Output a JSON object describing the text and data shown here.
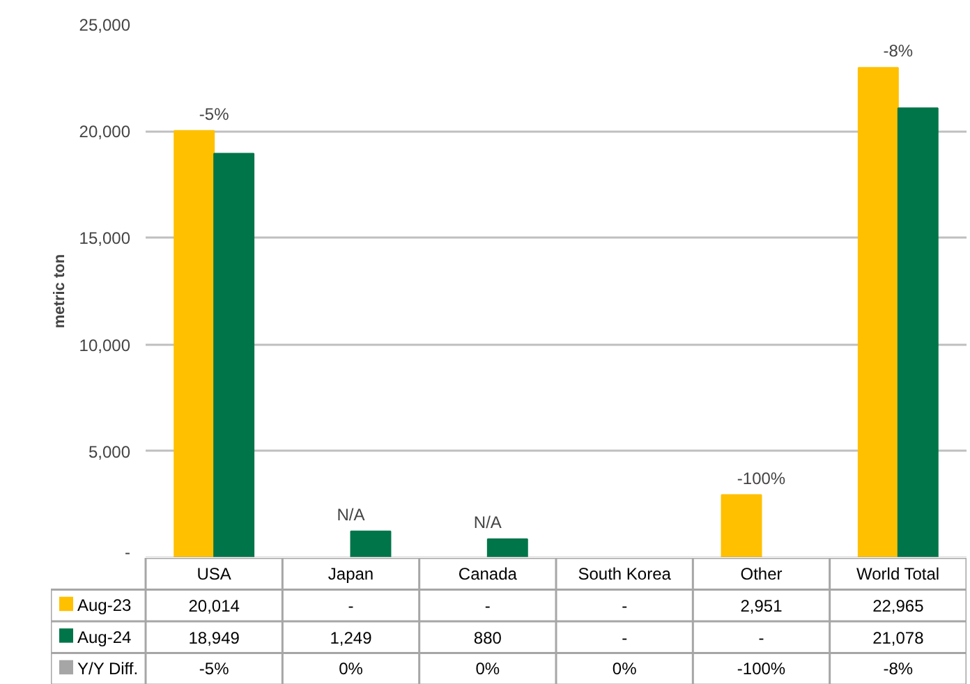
{
  "chart_data": {
    "type": "bar",
    "ylabel": "metric ton",
    "categories": [
      "USA",
      "Japan",
      "Canada",
      "South Korea",
      "Other",
      "World Total"
    ],
    "series": [
      {
        "name": "Aug-23",
        "color": "#ffc000",
        "values": [
          20014,
          null,
          null,
          null,
          2951,
          22965
        ],
        "value_labels": [
          "20,014",
          "-",
          "-",
          "-",
          "2,951",
          "22,965"
        ]
      },
      {
        "name": "Aug-24",
        "color": "#00754a",
        "values": [
          18949,
          1249,
          880,
          null,
          null,
          21078
        ],
        "value_labels": [
          "18,949",
          "1,249",
          "880",
          "-",
          "-",
          "21,078"
        ]
      },
      {
        "name": "Y/Y Diff.",
        "color": "#a6a6a6",
        "values": [
          null,
          null,
          null,
          null,
          null,
          null
        ],
        "value_labels": [
          "-5%",
          "0%",
          "0%",
          "0%",
          "-100%",
          "-8%"
        ]
      }
    ],
    "ylim": [
      0,
      25000
    ],
    "yticks": [
      {
        "value": 0,
        "label": "-"
      },
      {
        "value": 5000,
        "label": "5,000"
      },
      {
        "value": 10000,
        "label": "10,000"
      },
      {
        "value": 15000,
        "label": "15,000"
      },
      {
        "value": 20000,
        "label": "20,000"
      },
      {
        "value": 25000,
        "label": "25,000"
      }
    ],
    "grid": "y",
    "legend": "bottom",
    "annotations": [
      {
        "text": "-5%",
        "x": "USA",
        "y": 20014
      },
      {
        "text": "N/A",
        "x": "Japan",
        "y": 1249
      },
      {
        "text": "N/A",
        "x": "Canada",
        "y": 880
      },
      {
        "text": "-100%",
        "x": "Other",
        "y": 2951
      },
      {
        "text": "-8%",
        "x": "World Total",
        "y": 22965
      }
    ]
  }
}
